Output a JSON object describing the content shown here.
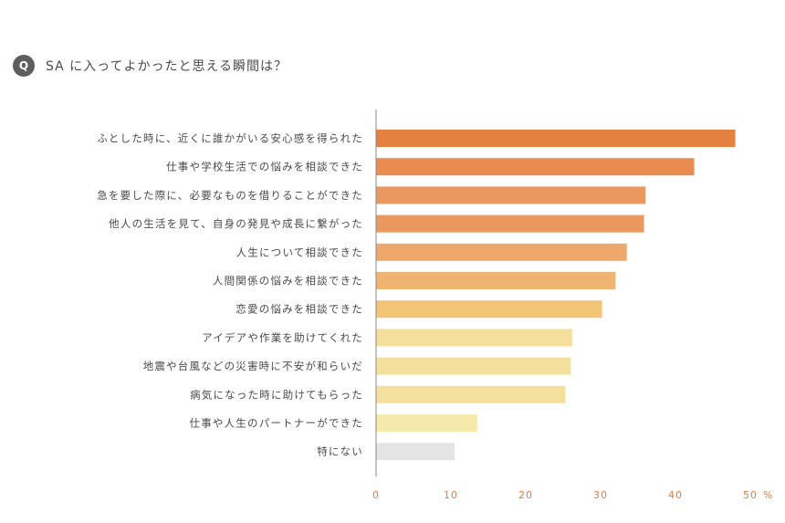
{
  "question": {
    "badge": "Q",
    "title": "SA に入ってよかったと思える瞬間は？"
  },
  "chart_data": {
    "type": "bar",
    "orientation": "horizontal",
    "title": "",
    "xlabel": "",
    "ylabel": "",
    "xlim": [
      0,
      50
    ],
    "ticks": [
      0,
      10,
      20,
      30,
      40,
      50
    ],
    "tick_labels": [
      "0",
      "10",
      "20",
      "30",
      "40",
      "50"
    ],
    "unit": "%",
    "grid": false,
    "categories": [
      "ふとした時に、近くに誰かがいる安心感を得られた",
      "仕事や学校生活での悩みを相談できた",
      "急を要した際に、必要なものを借りることができた",
      "他人の生活を見て、自身の発見や成長に繋がった",
      "人生について相談できた",
      "人間関係の悩みを相談できた",
      "恋愛の悩みを相談できた",
      "アイデアや作業を助けてくれた",
      "地震や台風などの災害時に不安が和らいだ",
      "病気になった時に助けてもらった",
      "仕事や人生のパートナーができた",
      "特にない"
    ],
    "values": [
      48.0,
      42.5,
      36.0,
      35.8,
      33.5,
      32.0,
      30.2,
      26.2,
      26.0,
      25.3,
      13.5,
      10.5
    ],
    "colors": [
      "#e5813f",
      "#e98c4f",
      "#ea9760",
      "#ea9760",
      "#eea86b",
      "#efb472",
      "#f1c575",
      "#f4df9d",
      "#f4df9d",
      "#f4df9d",
      "#f6eaab",
      "#e4e4e4"
    ],
    "axis_color": "#888888",
    "tick_color": "#e07b3c"
  }
}
